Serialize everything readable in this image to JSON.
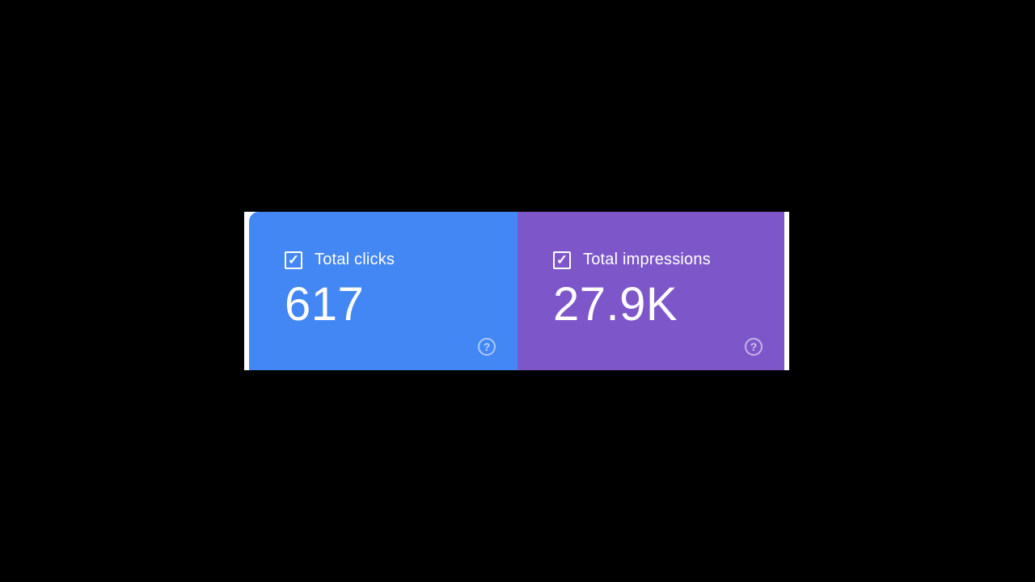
{
  "panel": {
    "cards": [
      {
        "id": "total-clicks",
        "label": "Total clicks",
        "value": "617",
        "checked": true,
        "color": "#4387f4"
      },
      {
        "id": "total-impressions",
        "label": "Total impressions",
        "value": "27.9K",
        "checked": true,
        "color": "#7d57c9"
      }
    ]
  },
  "glyphs": {
    "checkmark": "✓",
    "help": "?"
  },
  "colors": {
    "page_background": "#000000",
    "panel_background": "#ffffff",
    "clicks_card": "#4387f4",
    "impressions_card": "#7d57c9",
    "text": "#ffffff"
  }
}
